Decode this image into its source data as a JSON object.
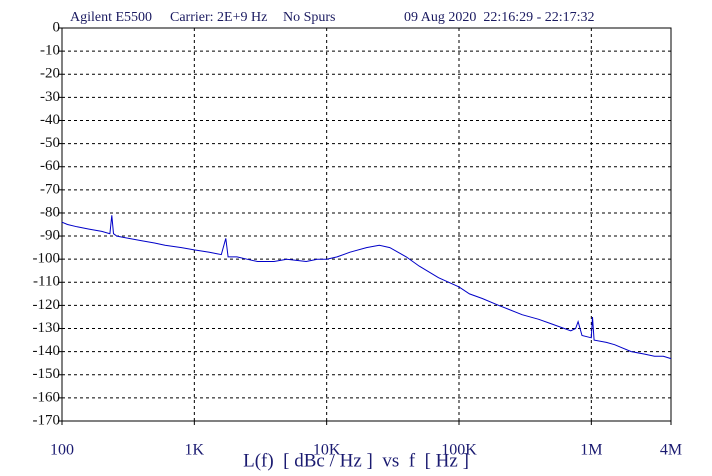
{
  "chart_data": {
    "type": "line",
    "title": "Agilent E5500",
    "annotations": [
      "Carrier: 2E+9 Hz",
      "No Spurs",
      "09 Aug 2020  22:16:29 - 22:17:32"
    ],
    "xlabel": "L(f)  [ dBc / Hz ]  vs  f  [ Hz ]",
    "log_x": true,
    "grid": true,
    "color": "#0000c8",
    "xlim": [
      100,
      4000000
    ],
    "ylim": [
      -170,
      0
    ],
    "xticks": [
      100,
      {
        "value": 1000,
        "label": "1K"
      },
      {
        "value": 10000,
        "label": "10K"
      },
      {
        "value": 100000,
        "label": "100K"
      },
      {
        "value": 1000000,
        "label": "1M"
      },
      {
        "value": 4000000,
        "label": "4M"
      }
    ],
    "yticks": [
      0,
      -10,
      -20,
      -30,
      -40,
      -50,
      -60,
      -70,
      -80,
      -90,
      -100,
      -110,
      -120,
      -130,
      -140,
      -150,
      -160,
      -170
    ],
    "x": [
      100,
      110,
      130,
      160,
      200,
      230,
      238,
      245,
      260,
      320,
      400,
      500,
      600,
      800,
      1000,
      1300,
      1600,
      1730,
      1800,
      2100,
      2500,
      3000,
      4000,
      5000,
      7000,
      8500,
      10000,
      12000,
      15000,
      20000,
      25000,
      30000,
      40000,
      50000,
      70000,
      100000,
      120000,
      150000,
      200000,
      300000,
      400000,
      500000,
      700000,
      760000,
      794000,
      850000,
      1000000,
      1020000,
      1050000,
      1300000,
      1500000,
      2000000,
      2500000,
      3000000,
      3500000,
      4000000
    ],
    "values": [
      -84,
      -85,
      -86,
      -87,
      -88,
      -89,
      -81,
      -89,
      -90,
      -91,
      -92,
      -93,
      -94,
      -95,
      -96,
      -97,
      -98,
      -91,
      -99,
      -99,
      -100,
      -101,
      -101,
      -100,
      -101,
      -100,
      -100,
      -99,
      -97,
      -95,
      -94,
      -95,
      -99,
      -103,
      -108,
      -112,
      -115,
      -117,
      -120,
      -124,
      -126,
      -128,
      -131,
      -130,
      -127,
      -133,
      -134,
      -125,
      -135,
      -136,
      -137,
      -140,
      -141,
      -142,
      -142,
      -143
    ]
  }
}
